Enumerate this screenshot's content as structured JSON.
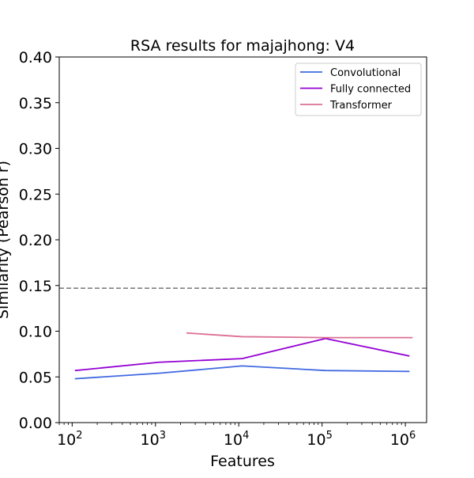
{
  "chart_data": {
    "type": "line",
    "title": "RSA results for majajhong: V4",
    "xlabel": "Features",
    "ylabel": "Similarity (Pearson r)",
    "xscale": "log",
    "xlim": [
      70,
      1800000
    ],
    "ylim": [
      0,
      0.4
    ],
    "yticks": [
      0.0,
      0.05,
      0.1,
      0.15,
      0.2,
      0.25,
      0.3,
      0.35,
      0.4
    ],
    "ytick_labels": [
      "0.00",
      "0.05",
      "0.10",
      "0.15",
      "0.20",
      "0.25",
      "0.30",
      "0.35",
      "0.40"
    ],
    "xticks": [
      100,
      1000,
      10000,
      100000,
      1000000
    ],
    "xtick_labels": [
      {
        "base": "10",
        "exp": "2"
      },
      {
        "base": "10",
        "exp": "3"
      },
      {
        "base": "10",
        "exp": "4"
      },
      {
        "base": "10",
        "exp": "5"
      },
      {
        "base": "10",
        "exp": "6"
      }
    ],
    "grid": false,
    "legend_position": "top-right",
    "reference_line": {
      "y": 0.147,
      "color": "#808080",
      "style": "dashed"
    },
    "series": [
      {
        "name": "Convolutional",
        "color": "#4169e1",
        "x": [
          110,
          1100,
          11000,
          110000,
          1100000
        ],
        "y": [
          0.048,
          0.054,
          0.062,
          0.057,
          0.056
        ]
      },
      {
        "name": "Fully connected",
        "color": "#9400d3",
        "x": [
          110,
          1100,
          11000,
          110000,
          1100000
        ],
        "y": [
          0.057,
          0.066,
          0.07,
          0.092,
          0.073
        ]
      },
      {
        "name": "Transformer",
        "color": "#db7093",
        "x": [
          2400,
          11000,
          110000,
          1200000
        ],
        "y": [
          0.098,
          0.094,
          0.093,
          0.093
        ]
      }
    ]
  }
}
